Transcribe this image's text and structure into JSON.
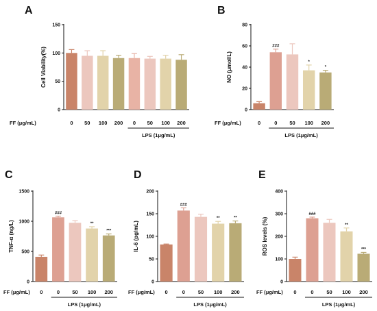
{
  "row_label": "FF (μg/mL)",
  "lps_label": "LPS (1μg/mL)",
  "chart_data": [
    {
      "panel": "A",
      "type": "bar",
      "ylabel": "Cell Viability(%)",
      "ylim": [
        0,
        150
      ],
      "yticks": [
        "0",
        "50",
        "100",
        "150"
      ],
      "categories": [
        "0",
        "50",
        "100",
        "200",
        "0",
        "50",
        "100",
        "200"
      ],
      "values": [
        100,
        95,
        95,
        91,
        91,
        90,
        90,
        88
      ],
      "errors": [
        6,
        9,
        9,
        5,
        8,
        4,
        6,
        9
      ],
      "colors": [
        "#c98469",
        "#ecc7be",
        "#e2d3aa",
        "#b9ab76",
        "#e8b3a5",
        "#ecc7be",
        "#e2d3aa",
        "#b9ab76"
      ],
      "significance": [
        "",
        "",
        "",
        "",
        "",
        "",
        "",
        ""
      ],
      "lps_start_index": 4
    },
    {
      "panel": "B",
      "type": "bar",
      "ylabel": "NO (μmol/L)",
      "ylim": [
        0,
        80
      ],
      "yticks": [
        "0",
        "20",
        "40",
        "60",
        "80"
      ],
      "categories": [
        "0",
        "0",
        "50",
        "100",
        "200"
      ],
      "values": [
        6,
        54,
        52,
        37,
        35
      ],
      "errors": [
        1.5,
        3,
        10,
        5,
        2
      ],
      "colors": [
        "#c98469",
        "#dda092",
        "#ecc7be",
        "#e2d3aa",
        "#b9ab76"
      ],
      "significance": [
        "",
        "###",
        "",
        "*",
        "*"
      ],
      "lps_start_index": 1
    },
    {
      "panel": "C",
      "type": "bar",
      "ylabel": "TNF-α (ng/L)",
      "ylim": [
        0,
        1500
      ],
      "yticks": [
        "0",
        "500",
        "1000",
        "1500"
      ],
      "categories": [
        "0",
        "0",
        "50",
        "100",
        "200"
      ],
      "values": [
        410,
        1065,
        975,
        880,
        765
      ],
      "errors": [
        30,
        20,
        35,
        30,
        25
      ],
      "colors": [
        "#c98469",
        "#dda092",
        "#ecc7be",
        "#e2d3aa",
        "#b9ab76"
      ],
      "significance": [
        "",
        "###",
        "",
        "**",
        "***"
      ],
      "lps_start_index": 1
    },
    {
      "panel": "D",
      "type": "bar",
      "ylabel": "IL-6 (pg/mL)",
      "ylim": [
        0,
        200
      ],
      "yticks": [
        "0",
        "50",
        "100",
        "150",
        "200"
      ],
      "categories": [
        "0",
        "0",
        "50",
        "100",
        "200"
      ],
      "values": [
        82,
        157,
        143,
        128,
        129
      ],
      "errors": [
        1,
        6,
        6,
        5,
        5
      ],
      "colors": [
        "#c98469",
        "#dda092",
        "#ecc7be",
        "#e2d3aa",
        "#b9ab76"
      ],
      "significance": [
        "",
        "###",
        "",
        "**",
        "**"
      ],
      "lps_start_index": 1
    },
    {
      "panel": "E",
      "type": "bar",
      "ylabel": "ROS levels (%)",
      "ylim": [
        0,
        400
      ],
      "yticks": [
        "0",
        "100",
        "200",
        "300",
        "400"
      ],
      "categories": [
        "0",
        "0",
        "50",
        "100",
        "200"
      ],
      "values": [
        100,
        280,
        260,
        222,
        123
      ],
      "errors": [
        8,
        5,
        15,
        15,
        6
      ],
      "colors": [
        "#c98469",
        "#dda092",
        "#ecc7be",
        "#e2d3aa",
        "#b9ab76"
      ],
      "significance": [
        "",
        "###",
        "",
        "**",
        "***"
      ],
      "lps_start_index": 1
    }
  ]
}
